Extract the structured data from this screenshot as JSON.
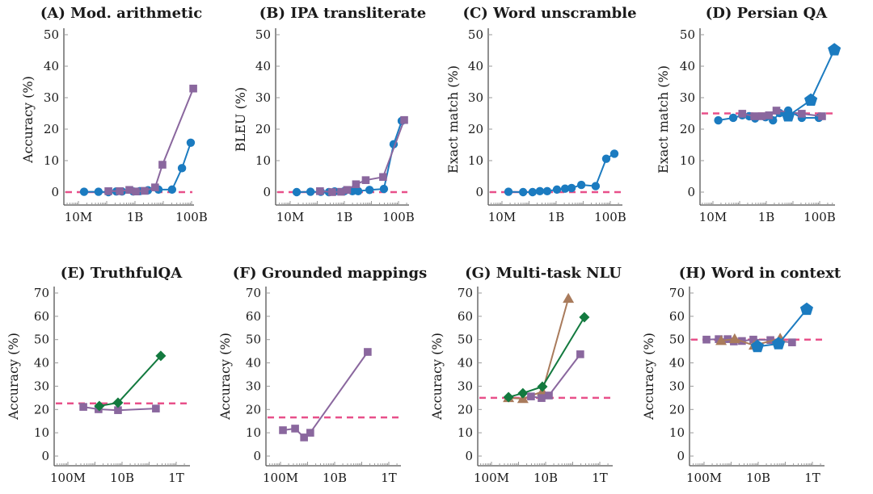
{
  "colors": {
    "blue": "#1b7bc0",
    "purple": "#8a679e",
    "green": "#137a3f",
    "brown": "#a97b5c",
    "chance": "#e8508a",
    "axis": "#555555"
  },
  "chart_data": [
    {
      "id": "A",
      "type": "line",
      "title": "(A) Mod. arithmetic",
      "xlabel": "",
      "ylabel": "Accuracy (%)",
      "xscale": "log",
      "xlim_log10": [
        6.5,
        11.3
      ],
      "ylim": [
        -3,
        52
      ],
      "yticks": [
        0,
        10,
        20,
        30,
        40,
        50
      ],
      "xticks": [
        {
          "log10": 7,
          "label": "10M"
        },
        {
          "log10": 9,
          "label": "1B"
        },
        {
          "log10": 11,
          "label": "100B"
        }
      ],
      "chance": 0,
      "series": [
        {
          "name": "blue-circle",
          "color": "blue",
          "marker": "circle",
          "x_log10": [
            7.2,
            7.71,
            8.06,
            8.34,
            8.54,
            8.94,
            9.17,
            9.46,
            9.83,
            10.31,
            10.66,
            10.97
          ],
          "values": [
            0.1,
            0.1,
            0.0,
            0.2,
            0.2,
            0.2,
            0.3,
            0.6,
            0.8,
            0.8,
            7.6,
            15.7
          ]
        },
        {
          "name": "purple-square",
          "color": "purple",
          "marker": "square",
          "x_log10": [
            8.06,
            8.46,
            8.8,
            9.03,
            9.34,
            9.71,
            9.97,
            11.06
          ],
          "values": [
            0.3,
            0.3,
            0.7,
            0.2,
            0.4,
            1.5,
            8.7,
            32.9
          ]
        }
      ]
    },
    {
      "id": "B",
      "type": "line",
      "title": "(B) IPA transliterate",
      "xlabel": "",
      "ylabel": "BLEU (%)",
      "xscale": "log",
      "xlim_log10": [
        6.5,
        11.3
      ],
      "ylim": [
        -3,
        52
      ],
      "yticks": [
        0,
        10,
        20,
        30,
        40,
        50
      ],
      "xticks": [
        {
          "log10": 7,
          "label": "10M"
        },
        {
          "log10": 9,
          "label": "1B"
        },
        {
          "log10": 11,
          "label": "100B"
        }
      ],
      "chance": 0,
      "series": [
        {
          "name": "blue-circle",
          "color": "blue",
          "marker": "circle",
          "x_log10": [
            7.24,
            7.75,
            8.13,
            8.43,
            8.64,
            9.0,
            9.3,
            9.51,
            9.93,
            10.46,
            10.82,
            11.12
          ],
          "values": [
            0.0,
            0.1,
            0.1,
            0.0,
            0.2,
            0.3,
            0.3,
            0.3,
            0.7,
            1.0,
            15.2,
            22.6
          ]
        },
        {
          "name": "purple-square",
          "color": "purple",
          "marker": "square",
          "x_log10": [
            8.1,
            8.55,
            8.88,
            9.1,
            9.43,
            9.79,
            10.43,
            11.21
          ],
          "values": [
            0.3,
            0.0,
            0.1,
            0.7,
            2.5,
            3.8,
            4.8,
            22.9
          ]
        }
      ]
    },
    {
      "id": "C",
      "type": "line",
      "title": "(C) Word unscramble",
      "xlabel": "",
      "ylabel": "Exact match (%)",
      "xscale": "log",
      "xlim_log10": [
        6.5,
        11.3
      ],
      "ylim": [
        -3,
        52
      ],
      "yticks": [
        0,
        10,
        20,
        30,
        40,
        50
      ],
      "xticks": [
        {
          "log10": 7,
          "label": "10M"
        },
        {
          "log10": 9,
          "label": "1B"
        },
        {
          "log10": 11,
          "label": "100B"
        }
      ],
      "chance": 0,
      "series": [
        {
          "name": "blue-circle",
          "color": "blue",
          "marker": "circle",
          "x_log10": [
            7.24,
            7.78,
            8.13,
            8.4,
            8.67,
            9.03,
            9.33,
            9.57,
            9.93,
            10.46,
            10.85,
            11.15
          ],
          "values": [
            0.1,
            0.0,
            0.0,
            0.3,
            0.3,
            0.8,
            1.1,
            1.3,
            2.3,
            1.9,
            10.6,
            12.2
          ]
        }
      ]
    },
    {
      "id": "D",
      "type": "line",
      "title": "(D) Persian QA",
      "xlabel": "",
      "ylabel": "Exact match (%)",
      "xscale": "log",
      "xlim_log10": [
        6.5,
        11.85
      ],
      "ylim": [
        -3,
        52
      ],
      "yticks": [
        0,
        10,
        20,
        30,
        40,
        50
      ],
      "xticks": [
        {
          "log10": 7,
          "label": "10M"
        },
        {
          "log10": 9,
          "label": "1B"
        },
        {
          "log10": 11,
          "label": "100B"
        }
      ],
      "chance": 25,
      "series": [
        {
          "name": "blue-circle",
          "color": "blue",
          "marker": "circle",
          "x_log10": [
            7.2,
            7.76,
            8.1,
            8.36,
            8.58,
            8.97,
            9.25,
            9.5,
            9.82,
            10.33,
            10.97
          ],
          "values": [
            22.8,
            23.6,
            24.4,
            24.1,
            23.4,
            23.8,
            22.8,
            25.1,
            25.9,
            23.6,
            23.6
          ]
        },
        {
          "name": "purple-square",
          "color": "purple",
          "marker": "square",
          "x_log10": [
            8.1,
            8.55,
            8.83,
            9.1,
            9.38,
            10.33,
            11.09
          ],
          "values": [
            24.9,
            24.1,
            24.1,
            24.4,
            25.9,
            24.9,
            24.1
          ]
        },
        {
          "name": "blue-pentagon",
          "color": "blue",
          "marker": "pentagon",
          "x_log10": [
            9.82,
            10.67,
            11.55
          ],
          "values": [
            24.2,
            29.2,
            45.2
          ]
        }
      ]
    },
    {
      "id": "E",
      "type": "line",
      "title": "(E) TruthfulQA",
      "xlabel": "",
      "ylabel": "Accuracy (%)",
      "xscale": "log",
      "xlim_log10": [
        7.5,
        12.5
      ],
      "ylim": [
        -4,
        72
      ],
      "yticks": [
        0,
        10,
        20,
        30,
        40,
        50,
        60,
        70
      ],
      "xticks": [
        {
          "log10": 8,
          "label": "100M"
        },
        {
          "log10": 10,
          "label": "10B"
        },
        {
          "log10": 12,
          "label": "1T"
        }
      ],
      "chance": 22.6,
      "series": [
        {
          "name": "purple-square",
          "color": "purple",
          "marker": "square",
          "x_log10": [
            8.57,
            9.13,
            9.85,
            11.25
          ],
          "values": [
            21.1,
            20.1,
            19.7,
            20.4
          ]
        },
        {
          "name": "green-diamond",
          "color": "green",
          "marker": "diamond",
          "x_log10": [
            9.16,
            9.85,
            11.43
          ],
          "values": [
            21.5,
            22.9,
            43.0
          ]
        }
      ]
    },
    {
      "id": "F",
      "type": "line",
      "title": "(F) Grounded mappings",
      "xlabel": "",
      "ylabel": "Accuracy (%)",
      "xscale": "log",
      "xlim_log10": [
        7.5,
        12.5
      ],
      "ylim": [
        -4,
        72
      ],
      "yticks": [
        0,
        10,
        20,
        30,
        40,
        50,
        60,
        70
      ],
      "xticks": [
        {
          "log10": 8,
          "label": "100M"
        },
        {
          "log10": 10,
          "label": "10B"
        },
        {
          "log10": 12,
          "label": "1T"
        }
      ],
      "chance": 16.6,
      "series": [
        {
          "name": "purple-square",
          "color": "purple",
          "marker": "square",
          "x_log10": [
            8.09,
            8.54,
            8.87,
            9.1,
            11.22
          ],
          "values": [
            11.1,
            11.8,
            8.0,
            10.0,
            44.7
          ]
        }
      ]
    },
    {
      "id": "G",
      "type": "line",
      "title": "(G) Multi-task NLU",
      "xlabel": "",
      "ylabel": "Accuracy (%)",
      "xscale": "log",
      "xlim_log10": [
        7.5,
        12.5
      ],
      "ylim": [
        -4,
        72
      ],
      "yticks": [
        0,
        10,
        20,
        30,
        40,
        50,
        60,
        70
      ],
      "xticks": [
        {
          "log10": 8,
          "label": "100M"
        },
        {
          "log10": 10,
          "label": "10B"
        },
        {
          "log10": 12,
          "label": "1T"
        }
      ],
      "chance": 25,
      "series": [
        {
          "name": "brown-triangle",
          "color": "brown",
          "marker": "triangle",
          "x_log10": [
            8.63,
            9.16,
            9.88,
            10.84
          ],
          "values": [
            25.0,
            24.6,
            27.7,
            67.6
          ]
        },
        {
          "name": "green-diamond",
          "color": "green",
          "marker": "diamond",
          "x_log10": [
            8.63,
            9.16,
            9.88,
            11.43
          ],
          "values": [
            25.3,
            27.0,
            29.8,
            59.6
          ]
        },
        {
          "name": "purple-square",
          "color": "purple",
          "marker": "square",
          "x_log10": [
            9.46,
            9.85,
            10.12,
            11.28
          ],
          "values": [
            25.6,
            24.9,
            26.0,
            43.7
          ]
        }
      ]
    },
    {
      "id": "H",
      "type": "line",
      "title": "(H) Word in context",
      "xlabel": "",
      "ylabel": "Accuracy (%)",
      "xscale": "log",
      "xlim_log10": [
        7.5,
        12.5
      ],
      "ylim": [
        -4,
        72
      ],
      "yticks": [
        0,
        10,
        20,
        30,
        40,
        50,
        60,
        70
      ],
      "xticks": [
        {
          "log10": 8,
          "label": "100M"
        },
        {
          "log10": 10,
          "label": "10B"
        },
        {
          "log10": 12,
          "label": "1T"
        }
      ],
      "chance": 50,
      "series": [
        {
          "name": "purple-square",
          "color": "purple",
          "marker": "square",
          "x_log10": [
            8.09,
            8.54,
            8.87,
            9.1,
            9.4,
            9.82,
            10.45,
            11.25
          ],
          "values": [
            50.0,
            50.2,
            50.2,
            49.2,
            49.4,
            50.0,
            49.8,
            48.8
          ]
        },
        {
          "name": "brown-triangle",
          "color": "brown",
          "marker": "triangle",
          "x_log10": [
            8.63,
            9.13,
            9.85,
            10.81
          ],
          "values": [
            49.5,
            50.3,
            47.5,
            50.5
          ]
        },
        {
          "name": "blue-pentagon",
          "color": "blue",
          "marker": "pentagon",
          "x_log10": [
            9.97,
            10.75,
            11.79
          ],
          "values": [
            47.0,
            48.2,
            63.0
          ]
        }
      ]
    }
  ]
}
